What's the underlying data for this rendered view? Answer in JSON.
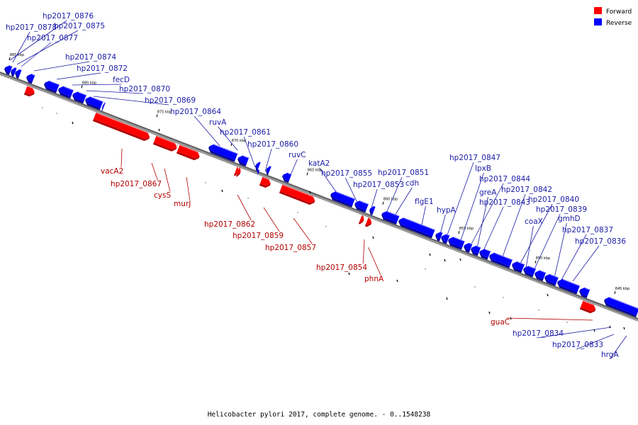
{
  "caption": "Helicobacter pylori 2017, complete genome. - 0..1548238",
  "legend": [
    {
      "label": "Forward",
      "color": "#ff0000"
    },
    {
      "label": "Reverse",
      "color": "#0000ff"
    }
  ],
  "colors": {
    "forward": "#ff0000",
    "forward_dark": "#b30000",
    "forward_light": "#ff8080",
    "reverse": "#0000ff",
    "reverse_dark": "#0000a0",
    "reverse_light": "#8080ff",
    "label_forward": "#b30000",
    "label_reverse": "#1a1aa6"
  },
  "ticks": [
    "885 kbp",
    "880 kbp",
    "875 kbp",
    "870 kbp",
    "865 kbp",
    "860 kbp",
    "855 kbp",
    "850 kbp",
    "845 kbp"
  ],
  "reverse_genes": [
    "hp2017_0876",
    "hp2017_0878",
    "hp2017_0875",
    "hp2017_0877",
    "hp2017_0874",
    "hp2017_0872",
    "fecD",
    "hp2017_0870",
    "hp2017_0869",
    "hp2017_0864",
    "ruvA",
    "hp2017_0861",
    "hp2017_0860",
    "ruvC",
    "katA2",
    "hp2017_0855",
    "hp2017_0853",
    "hp2017_0851",
    "cdh",
    "flgE1",
    "hypA",
    "hp2017_0847",
    "lpxB",
    "hp2017_0844",
    "greA",
    "hp2017_0843",
    "hp2017_0842",
    "hp2017_0840",
    "coaX",
    "hp2017_0839",
    "gmhD",
    "hp2017_0837",
    "hp2017_0836",
    "hp2017_0834",
    "hp2017_0833",
    "hrgA"
  ],
  "forward_genes": [
    "vacA2",
    "hp2017_0867",
    "cysS",
    "murJ",
    "hp2017_0862",
    "hp2017_0859",
    "hp2017_0857",
    "hp2017_0854",
    "phnA",
    "guaC"
  ]
}
